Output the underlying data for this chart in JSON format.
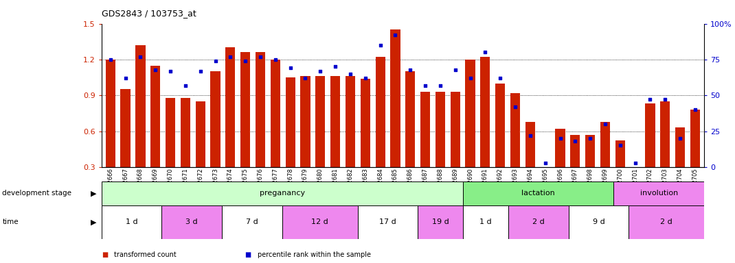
{
  "title": "GDS2843 / 103753_at",
  "samples": [
    "GSM202666",
    "GSM202667",
    "GSM202668",
    "GSM202669",
    "GSM202670",
    "GSM202671",
    "GSM202672",
    "GSM202673",
    "GSM202674",
    "GSM202675",
    "GSM202676",
    "GSM202677",
    "GSM202678",
    "GSM202679",
    "GSM202680",
    "GSM202681",
    "GSM202682",
    "GSM202683",
    "GSM202684",
    "GSM202685",
    "GSM202686",
    "GSM202687",
    "GSM202688",
    "GSM202689",
    "GSM202690",
    "GSM202691",
    "GSM202692",
    "GSM202693",
    "GSM202694",
    "GSM202695",
    "GSM202696",
    "GSM202697",
    "GSM202698",
    "GSM202699",
    "GSM202700",
    "GSM202701",
    "GSM202702",
    "GSM202703",
    "GSM202704",
    "GSM202705"
  ],
  "red_values": [
    1.2,
    0.95,
    1.32,
    1.15,
    0.88,
    0.88,
    0.85,
    1.1,
    1.3,
    1.26,
    1.26,
    1.2,
    1.05,
    1.06,
    1.06,
    1.06,
    1.06,
    1.04,
    1.22,
    1.45,
    1.1,
    0.93,
    0.93,
    0.93,
    1.2,
    1.22,
    1.0,
    0.92,
    0.68,
    0.3,
    0.62,
    0.57,
    0.57,
    0.68,
    0.52,
    0.3,
    0.83,
    0.85,
    0.63,
    0.78
  ],
  "blue_percentile": [
    75,
    62,
    77,
    68,
    67,
    57,
    67,
    74,
    77,
    74,
    77,
    75,
    69,
    62,
    67,
    70,
    65,
    62,
    85,
    92,
    68,
    57,
    57,
    68,
    62,
    80,
    62,
    42,
    22,
    3,
    20,
    18,
    20,
    30,
    15,
    3,
    47,
    47,
    20,
    40
  ],
  "ylim_left": [
    0.3,
    1.5
  ],
  "ylim_right": [
    0,
    100
  ],
  "yticks_left": [
    0.3,
    0.6,
    0.9,
    1.2,
    1.5
  ],
  "yticks_right": [
    0,
    25,
    50,
    75,
    100
  ],
  "bar_color": "#cc2200",
  "dot_color": "#0000cc",
  "grid_lines": [
    0.6,
    0.9,
    1.2
  ],
  "stages": [
    {
      "label": "preganancy",
      "start": 0,
      "end": 24,
      "color": "#ccffcc"
    },
    {
      "label": "lactation",
      "start": 24,
      "end": 34,
      "color": "#88ee88"
    },
    {
      "label": "involution",
      "start": 34,
      "end": 40,
      "color": "#ee88ee"
    }
  ],
  "times": [
    {
      "label": "1 d",
      "start": 0,
      "end": 4,
      "color": "#ffffff"
    },
    {
      "label": "3 d",
      "start": 4,
      "end": 8,
      "color": "#ee88ee"
    },
    {
      "label": "7 d",
      "start": 8,
      "end": 12,
      "color": "#ffffff"
    },
    {
      "label": "12 d",
      "start": 12,
      "end": 17,
      "color": "#ee88ee"
    },
    {
      "label": "17 d",
      "start": 17,
      "end": 21,
      "color": "#ffffff"
    },
    {
      "label": "19 d",
      "start": 21,
      "end": 24,
      "color": "#ee88ee"
    },
    {
      "label": "1 d",
      "start": 24,
      "end": 27,
      "color": "#ffffff"
    },
    {
      "label": "2 d",
      "start": 27,
      "end": 31,
      "color": "#ee88ee"
    },
    {
      "label": "9 d",
      "start": 31,
      "end": 35,
      "color": "#ffffff"
    },
    {
      "label": "2 d",
      "start": 35,
      "end": 40,
      "color": "#ee88ee"
    }
  ],
  "legend_items": [
    {
      "color": "#cc2200",
      "label": "transformed count"
    },
    {
      "color": "#0000cc",
      "label": "percentile rank within the sample"
    }
  ],
  "bg_color": "#ffffff",
  "plot_bg": "#ffffff",
  "xtick_bg": "#d8d8d8"
}
